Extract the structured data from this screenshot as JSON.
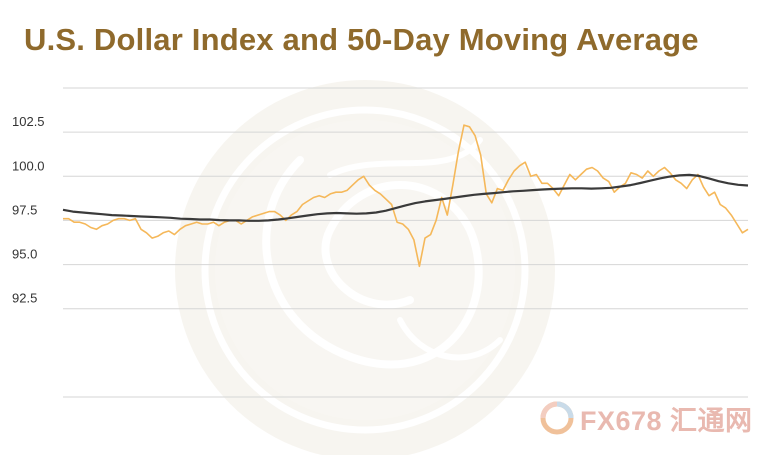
{
  "chart_data": {
    "type": "line",
    "title": "U.S. Dollar Index and 50-Day Moving Average",
    "xlabel": "",
    "ylabel": "",
    "ylim": [
      87.5,
      105
    ],
    "yticks": [
      "92.5",
      "95.0",
      "97.5",
      "100.0",
      "102.5"
    ],
    "ytick_values": [
      92.5,
      95.0,
      97.5,
      100.0,
      102.5
    ],
    "grid": true,
    "legend": "none",
    "series": [
      {
        "color": "#f5b85a",
        "values": [
          97.6,
          97.6,
          97.4,
          97.4,
          97.3,
          97.1,
          97.0,
          97.2,
          97.3,
          97.5,
          97.6,
          97.6,
          97.5,
          97.6,
          97.0,
          96.8,
          96.5,
          96.6,
          96.8,
          96.9,
          96.7,
          97.0,
          97.2,
          97.3,
          97.4,
          97.3,
          97.3,
          97.4,
          97.2,
          97.4,
          97.5,
          97.5,
          97.3,
          97.5,
          97.7,
          97.8,
          97.9,
          98.0,
          98.0,
          97.8,
          97.5,
          97.8,
          98.0,
          98.4,
          98.6,
          98.8,
          98.9,
          98.8,
          99.0,
          99.1,
          99.1,
          99.2,
          99.5,
          99.8,
          100.0,
          99.5,
          99.2,
          99.0,
          98.7,
          98.4,
          97.4,
          97.3,
          97.0,
          96.4,
          94.9,
          96.5,
          96.7,
          97.5,
          98.8,
          97.8,
          99.5,
          101.4,
          102.9,
          102.8,
          102.3,
          101.2,
          99.0,
          98.5,
          99.3,
          99.2,
          99.8,
          100.3,
          100.6,
          100.8,
          100.0,
          100.1,
          99.6,
          99.6,
          99.3,
          98.9,
          99.5,
          100.1,
          99.8,
          100.1,
          100.4,
          100.5,
          100.3,
          99.9,
          99.7,
          99.1,
          99.4,
          99.6,
          100.2,
          100.1,
          99.9,
          100.3,
          100.0,
          100.3,
          100.5,
          100.2,
          99.8,
          99.6,
          99.3,
          99.8,
          100.1,
          99.4,
          98.9,
          99.1,
          98.4,
          98.2,
          97.8,
          97.3,
          96.8,
          97.0
        ]
      },
      {
        "color": "#3a3a3a",
        "values": [
          98.1,
          98.0,
          97.95,
          97.9,
          97.85,
          97.8,
          97.78,
          97.75,
          97.72,
          97.7,
          97.68,
          97.65,
          97.6,
          97.58,
          97.55,
          97.55,
          97.52,
          97.5,
          97.5,
          97.48,
          97.48,
          97.5,
          97.55,
          97.62,
          97.7,
          97.78,
          97.85,
          97.9,
          97.92,
          97.9,
          97.88,
          97.9,
          97.95,
          98.05,
          98.2,
          98.35,
          98.48,
          98.58,
          98.65,
          98.72,
          98.8,
          98.88,
          98.95,
          99.0,
          99.05,
          99.1,
          99.15,
          99.18,
          99.22,
          99.25,
          99.28,
          99.3,
          99.32,
          99.32,
          99.3,
          99.32,
          99.35,
          99.42,
          99.5,
          99.62,
          99.75,
          99.88,
          99.98,
          100.05,
          100.08,
          100.02,
          99.88,
          99.72,
          99.6,
          99.52,
          99.48
        ]
      }
    ]
  },
  "watermark": {
    "text": "FX678 汇通网"
  }
}
